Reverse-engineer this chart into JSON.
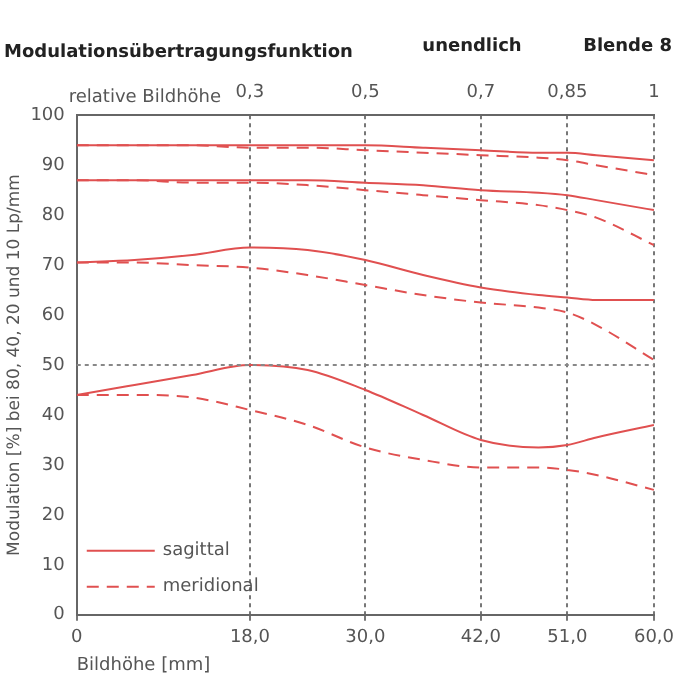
{
  "chart_data": {
    "type": "line",
    "title": "Modulationsübertragungsfunktion",
    "annotations": [
      "unendlich",
      "Blende 8"
    ],
    "xlabel": "Bildhöhe [mm]",
    "ylabel": "Modulation [%] bei 80, 40, 20 und 10 Lp/mm",
    "x2label": "relative Bildhöhe",
    "x": [
      0,
      6,
      12,
      18,
      24,
      30,
      36,
      42,
      48,
      51,
      54,
      60
    ],
    "series": [
      {
        "name": "sagittal",
        "color": "#e05050",
        "line_style": "solid",
        "values": [
          94,
          94,
          94,
          94,
          94,
          94,
          93.5,
          93,
          92.5,
          92.5,
          92,
          91
        ]
      },
      {
        "name": "meridional",
        "color": "#e05050",
        "line_style": "dashed",
        "values": [
          94,
          94,
          94,
          93.5,
          93.5,
          93,
          92.5,
          92,
          91.5,
          91,
          90,
          88
        ]
      },
      {
        "color": "#e05050",
        "line_style": "solid",
        "values": [
          87,
          87,
          87,
          87,
          87,
          86.5,
          86,
          85,
          84.5,
          84,
          83,
          81
        ]
      },
      {
        "color": "#e05050",
        "line_style": "dashed",
        "values": [
          87,
          87,
          86.5,
          86.5,
          86,
          85,
          84,
          83,
          82,
          81,
          79.5,
          74
        ]
      },
      {
        "color": "#e05050",
        "line_style": "solid",
        "values": [
          70.5,
          71,
          72,
          73.5,
          73,
          71,
          68,
          65.5,
          64,
          63.5,
          63,
          63
        ]
      },
      {
        "color": "#e05050",
        "line_style": "dashed",
        "values": [
          70.5,
          70.5,
          70,
          69.5,
          68,
          66,
          64,
          62.5,
          61.5,
          60.5,
          58,
          51
        ]
      },
      {
        "color": "#e05050",
        "line_style": "solid",
        "values": [
          44,
          46,
          48,
          50,
          49,
          45,
          40,
          35,
          33.5,
          34,
          35.5,
          38
        ]
      },
      {
        "color": "#e05050",
        "line_style": "dashed",
        "values": [
          44,
          44,
          43.5,
          41,
          38,
          33.5,
          31,
          29.5,
          29.5,
          29,
          28,
          25
        ]
      }
    ],
    "xlim": [
      0,
      60
    ],
    "xticks": [
      0,
      {
        "value": 18,
        "label": "18,0"
      },
      {
        "value": 30,
        "label": "30,0"
      },
      {
        "value": 42,
        "label": "42,0"
      },
      {
        "value": 51,
        "label": "51,0"
      },
      {
        "value": 60,
        "label": "60,0"
      }
    ],
    "x2lim": [
      0,
      1
    ],
    "x2ticks": [
      {
        "value": 0.3,
        "label": "0,3"
      },
      {
        "value": 0.5,
        "label": "0,5"
      },
      {
        "value": 0.7,
        "label": "0,7"
      },
      {
        "value": 0.85,
        "label": "0,85"
      },
      1
    ],
    "ylim": [
      0,
      100
    ],
    "yticks": [
      0,
      10,
      20,
      30,
      40,
      50,
      60,
      70,
      80,
      90,
      100
    ],
    "ref_lines": [
      {
        "axis": "y",
        "value": 50
      }
    ],
    "grid": "x",
    "legend": "bottom left",
    "marker": "none"
  }
}
